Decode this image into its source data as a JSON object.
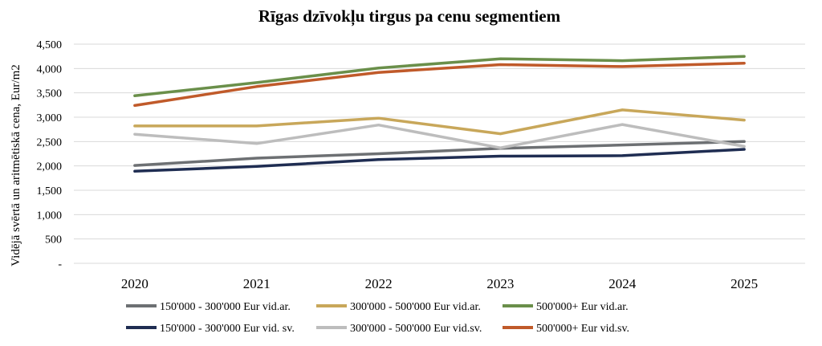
{
  "chart_data": {
    "type": "line",
    "title": "Rīgas dzīvokļu tirgus pa cenu segmentiem",
    "ylabel": "Vidējā svērtā un aritmētiskā cena, Eur/m2",
    "xlabel": "",
    "categories": [
      "2020",
      "2021",
      "2022",
      "2023",
      "2024",
      "2025"
    ],
    "ylim": [
      0,
      4500
    ],
    "yticks": [
      0,
      500,
      1000,
      1500,
      2000,
      2500,
      3000,
      3500,
      4000,
      4500
    ],
    "ytick_labels": [
      "-",
      "500",
      "1,000",
      "1,500",
      "2,000",
      "2,500",
      "3,000",
      "3,500",
      "4,000",
      "4,500"
    ],
    "grid": true,
    "legend_position": "bottom",
    "series": [
      {
        "name": "150'000 - 300'000 Eur vid.ar.",
        "color": "#6d7073",
        "values": [
          2010,
          2160,
          2250,
          2360,
          2430,
          2500
        ]
      },
      {
        "name": "300'000 - 500'000 Eur vid.ar.",
        "color": "#c8a75a",
        "values": [
          2820,
          2820,
          2980,
          2660,
          3150,
          2940
        ]
      },
      {
        "name": "500'000+ Eur vid.ar.",
        "color": "#6a8f4a",
        "values": [
          3440,
          3710,
          4010,
          4200,
          4160,
          4250
        ]
      },
      {
        "name": "150'000 - 300'000 Eur vid. sv.",
        "color": "#1f2d52",
        "values": [
          1890,
          1990,
          2130,
          2200,
          2210,
          2340
        ]
      },
      {
        "name": "300'000 - 500'000 Eur vid.sv.",
        "color": "#bdbdbd",
        "values": [
          2650,
          2460,
          2840,
          2370,
          2850,
          2400
        ]
      },
      {
        "name": "500'000+ Eur vid.sv.",
        "color": "#c05a2a",
        "values": [
          3240,
          3630,
          3920,
          4080,
          4040,
          4110
        ]
      }
    ]
  }
}
